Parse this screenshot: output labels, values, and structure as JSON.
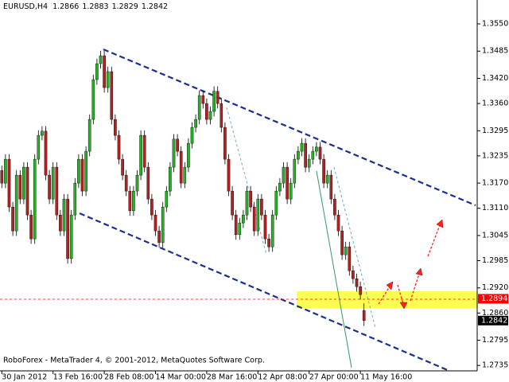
{
  "chart_data": {
    "type": "candlestick",
    "symbol": "EURUSD,H4",
    "copyright": "RoboForex - MetaTrader 4, © 2001-2012, MetaQuotes Software Corp.",
    "categories": [
      "30 Jan 2012",
      null,
      null,
      null,
      null,
      null,
      null,
      null,
      null,
      null,
      null,
      null,
      null,
      null,
      "13 Feb 16:00",
      null,
      null,
      null,
      null,
      null,
      null,
      null,
      null,
      null,
      null,
      null,
      null,
      null,
      "28 Feb 08:00",
      null,
      null,
      null,
      null,
      null,
      null,
      null,
      null,
      null,
      null,
      null,
      null,
      null,
      "14 Mar 00:00",
      null,
      null,
      null,
      null,
      null,
      null,
      null,
      null,
      null,
      null,
      null,
      null,
      null,
      "28 Mar 16:00",
      null,
      null,
      null,
      null,
      null,
      null,
      null,
      null,
      null,
      null,
      null,
      null,
      null,
      "12 Apr 08:00",
      null,
      null,
      null,
      null,
      null,
      null,
      null,
      null,
      null,
      null,
      null,
      null,
      null,
      "27 Apr 00:00",
      null,
      null,
      null,
      null,
      null,
      null,
      null,
      null,
      null,
      null,
      null,
      null,
      null,
      "11 May 16:00",
      null
    ],
    "open": [
      1.32,
      1.317,
      1.3227,
      1.3113,
      1.3056,
      1.3189,
      1.3132,
      1.3208,
      1.3094,
      1.3037,
      1.3227,
      1.3284,
      1.3294,
      1.3189,
      1.3132,
      1.3208,
      1.3094,
      1.3056,
      1.3132,
      1.299,
      1.3094,
      1.317,
      1.3227,
      1.3151,
      1.3246,
      1.3322,
      1.3417,
      1.3455,
      1.3474,
      1.3398,
      1.3436,
      1.3322,
      1.3284,
      1.3227,
      1.3189,
      1.3151,
      1.3104,
      1.3151,
      1.3189,
      1.3284,
      1.3208,
      1.3132,
      1.3094,
      1.3056,
      1.3028,
      1.3113,
      1.3151,
      1.3208,
      1.3275,
      1.3246,
      1.317,
      1.3208,
      1.3265,
      1.3303,
      1.3322,
      1.3379,
      1.336,
      1.3322,
      1.3341,
      1.3389,
      1.336,
      1.3303,
      1.3227,
      1.3151,
      1.3094,
      1.3047,
      1.3075,
      1.3094,
      1.3151,
      1.3113,
      1.3056,
      1.3132,
      1.3094,
      1.3037,
      1.3018,
      1.3094,
      1.3151,
      1.317,
      1.3208,
      1.3132,
      1.317,
      1.3227,
      1.3246,
      1.3265,
      1.3208,
      1.3227,
      1.3246,
      1.3256,
      1.3227,
      1.317,
      1.3189,
      1.3132,
      1.3094,
      1.3056,
      1.2999,
      1.3018,
      1.2961,
      1.2942,
      1.2923,
      1.2866
    ],
    "high": [
      1.3212,
      1.3239,
      1.3239,
      1.3125,
      1.3201,
      1.3201,
      1.322,
      1.322,
      1.3106,
      1.3239,
      1.3296,
      1.3306,
      1.3306,
      1.3201,
      1.322,
      1.322,
      1.3106,
      1.3144,
      1.3144,
      1.3106,
      1.3182,
      1.3239,
      1.3239,
      1.3258,
      1.3334,
      1.3429,
      1.3467,
      1.3486,
      1.3486,
      1.3448,
      1.3448,
      1.3334,
      1.3296,
      1.3239,
      1.3201,
      1.3163,
      1.3163,
      1.3201,
      1.3296,
      1.3296,
      1.322,
      1.3144,
      1.3106,
      1.3068,
      1.3125,
      1.3163,
      1.322,
      1.3287,
      1.3287,
      1.3258,
      1.322,
      1.3277,
      1.3315,
      1.3334,
      1.3391,
      1.3391,
      1.3372,
      1.3353,
      1.3401,
      1.3401,
      1.3372,
      1.3315,
      1.3239,
      1.3163,
      1.3106,
      1.3087,
      1.3106,
      1.3163,
      1.3163,
      1.3125,
      1.3144,
      1.3144,
      1.3106,
      1.3049,
      1.3106,
      1.3163,
      1.3182,
      1.322,
      1.322,
      1.3182,
      1.3239,
      1.3258,
      1.3277,
      1.3277,
      1.3239,
      1.3258,
      1.3268,
      1.3268,
      1.3239,
      1.3201,
      1.3201,
      1.3144,
      1.3106,
      1.3068,
      1.303,
      1.303,
      1.2973,
      1.2954,
      1.2935,
      1.2883
    ],
    "low": [
      1.3158,
      1.3158,
      1.3101,
      1.3044,
      1.3044,
      1.312,
      1.312,
      1.3082,
      1.3025,
      1.3025,
      1.3215,
      1.3272,
      1.3177,
      1.312,
      1.312,
      1.3082,
      1.3044,
      1.3044,
      1.2978,
      1.2978,
      1.3082,
      1.3158,
      1.3139,
      1.3139,
      1.3234,
      1.331,
      1.3405,
      1.3443,
      1.3386,
      1.3386,
      1.331,
      1.3272,
      1.3215,
      1.3177,
      1.3139,
      1.3092,
      1.3092,
      1.3139,
      1.3177,
      1.3196,
      1.312,
      1.3082,
      1.3044,
      1.3016,
      1.3016,
      1.3101,
      1.3139,
      1.3196,
      1.3234,
      1.3158,
      1.3158,
      1.3196,
      1.3253,
      1.3291,
      1.331,
      1.3348,
      1.331,
      1.331,
      1.3329,
      1.3348,
      1.3291,
      1.3215,
      1.3139,
      1.3082,
      1.3035,
      1.3035,
      1.3063,
      1.3082,
      1.3101,
      1.3044,
      1.3044,
      1.3082,
      1.3025,
      1.3006,
      1.3006,
      1.3082,
      1.3139,
      1.3158,
      1.312,
      1.312,
      1.3158,
      1.3215,
      1.3234,
      1.3196,
      1.3196,
      1.3215,
      1.3234,
      1.3215,
      1.3158,
      1.3158,
      1.312,
      1.3082,
      1.3044,
      1.2987,
      1.2987,
      1.2949,
      1.293,
      1.2911,
      1.2892,
      1.2829
    ],
    "close": [
      1.317,
      1.3227,
      1.3113,
      1.3056,
      1.3189,
      1.3132,
      1.3208,
      1.3094,
      1.3037,
      1.3227,
      1.3284,
      1.3294,
      1.3189,
      1.3132,
      1.3208,
      1.3094,
      1.3056,
      1.3132,
      1.299,
      1.3094,
      1.317,
      1.3227,
      1.3151,
      1.3246,
      1.3322,
      1.3417,
      1.3455,
      1.3474,
      1.3398,
      1.3436,
      1.3322,
      1.3284,
      1.3227,
      1.3189,
      1.3151,
      1.3104,
      1.3151,
      1.3189,
      1.3284,
      1.3208,
      1.3132,
      1.3094,
      1.3056,
      1.3028,
      1.3113,
      1.3151,
      1.3208,
      1.3275,
      1.3246,
      1.317,
      1.3208,
      1.3265,
      1.3303,
      1.3322,
      1.3379,
      1.336,
      1.3322,
      1.3341,
      1.3389,
      1.336,
      1.3303,
      1.3227,
      1.3151,
      1.3094,
      1.3047,
      1.3075,
      1.3094,
      1.3151,
      1.3113,
      1.3056,
      1.3132,
      1.3094,
      1.3037,
      1.3018,
      1.3094,
      1.3151,
      1.317,
      1.3208,
      1.3132,
      1.317,
      1.3227,
      1.3246,
      1.3265,
      1.3208,
      1.3227,
      1.3246,
      1.3256,
      1.3227,
      1.317,
      1.3189,
      1.3132,
      1.3094,
      1.3056,
      1.2999,
      1.3018,
      1.2961,
      1.2942,
      1.2923,
      1.2904,
      1.2842
    ],
    "up_color": "#22b422",
    "down_color": "#b22222",
    "wick_color": "#000000",
    "ylim": [
      1.2722,
      1.3607
    ],
    "yticks": [
      {
        "value": 1.355,
        "label": "1.3550"
      },
      1.3485,
      {
        "value": 1.342,
        "label": "1.3420"
      },
      {
        "value": 1.336,
        "label": "1.3360"
      },
      1.3295,
      1.3235,
      {
        "value": 1.317,
        "label": "1.3170"
      },
      {
        "value": 1.311,
        "label": "1.3110"
      },
      1.3045,
      1.2985,
      {
        "value": 1.292,
        "label": "1.2920"
      },
      {
        "value": 1.286,
        "label": "1.2860"
      },
      1.2795,
      1.2735
    ],
    "price_levels": [
      1.2894,
      1.2842
    ],
    "price_level_colors": [
      "#ff0000",
      "#000000"
    ],
    "grid": false
  }
}
